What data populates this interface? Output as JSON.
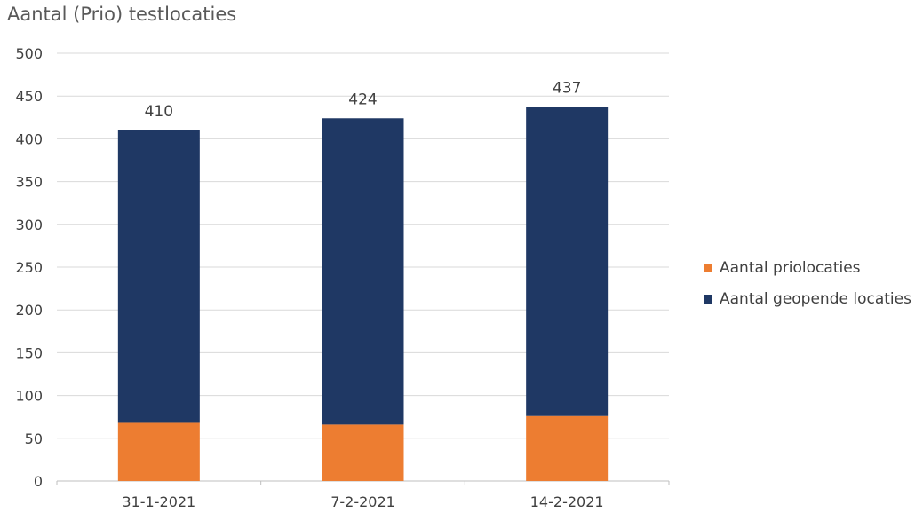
{
  "chart_data": {
    "type": "bar",
    "stacked": true,
    "title": "Aantal (Prio) testlocaties",
    "xlabel": "",
    "ylabel": "",
    "categories": [
      "31-1-2021",
      "7-2-2021",
      "14-2-2021"
    ],
    "ylim": [
      0,
      500
    ],
    "yticks": [
      0,
      50,
      100,
      150,
      200,
      250,
      300,
      350,
      400,
      450,
      500
    ],
    "grid": true,
    "legend_position": "right",
    "series": [
      {
        "name": "Aantal priolocaties",
        "color": "#ED7D31",
        "values": [
          68,
          66,
          76
        ]
      },
      {
        "name": "Aantal geopende locaties",
        "color": "#1F3864",
        "values": [
          342,
          358,
          361
        ]
      }
    ],
    "total_labels": [
      "410",
      "424",
      "437"
    ]
  }
}
